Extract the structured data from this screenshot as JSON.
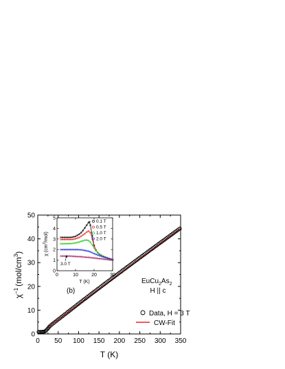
{
  "chart_data": [
    {
      "type": "scatter",
      "panel_label": "(b)",
      "xlabel": "T (K)",
      "ylabel_base": "χ",
      "ylabel_sup": "−1",
      "ylabel_units_prefix": "(mol/cm",
      "ylabel_units_sup": "3",
      "ylabel_units_suffix": ")",
      "xlim": [
        0,
        350
      ],
      "ylim": [
        0,
        50
      ],
      "xticks": [
        0,
        50,
        100,
        150,
        200,
        250,
        300,
        350
      ],
      "yticks": [
        0,
        10,
        20,
        30,
        40,
        50
      ],
      "compound_base": "EuCu",
      "compound_sub1": "2",
      "compound_mid": "As",
      "compound_sub2": "2",
      "field_direction": "H || c",
      "grid": false,
      "legend_placement": "bottom-right",
      "series": [
        {
          "name": "Data, H = 3 T",
          "style": "open-circle",
          "color": "#000000",
          "x": [
            2,
            4,
            6,
            8,
            10,
            12,
            14,
            16,
            18,
            20,
            22,
            24,
            26,
            28,
            30,
            33,
            36,
            39,
            42,
            45,
            48,
            51,
            54,
            57,
            60,
            63,
            66,
            69,
            72,
            75,
            78,
            81,
            84,
            87,
            90,
            93,
            96,
            99,
            102,
            105,
            108,
            111,
            114,
            117,
            120,
            123,
            126,
            129,
            132,
            135,
            138,
            141,
            144,
            147,
            150,
            153,
            156,
            159,
            162,
            165,
            168,
            171,
            174,
            177,
            180,
            183,
            186,
            189,
            192,
            195,
            198,
            201,
            204,
            207,
            210,
            213,
            216,
            219,
            222,
            225,
            228,
            231,
            234,
            237,
            240,
            243,
            246,
            249,
            252,
            255,
            258,
            261,
            264,
            267,
            270,
            273,
            276,
            279,
            282,
            285,
            288,
            291,
            294,
            297,
            300,
            303,
            306,
            309,
            312,
            315,
            318,
            321,
            324,
            327,
            330,
            333,
            336,
            339,
            342,
            345,
            348
          ],
          "y": [
            0.85,
            0.85,
            0.85,
            0.85,
            0.85,
            0.88,
            0.92,
            1.0,
            1.15,
            1.4,
            1.75,
            2.15,
            2.55,
            2.95,
            3.35,
            3.8,
            4.2,
            4.6,
            5.0,
            5.4,
            5.8,
            6.2,
            6.6,
            7.0,
            7.4,
            7.8,
            8.2,
            8.6,
            9.0,
            9.4,
            9.8,
            10.2,
            10.6,
            11.0,
            11.4,
            11.8,
            12.2,
            12.6,
            13.0,
            13.4,
            13.8,
            14.2,
            14.6,
            14.95,
            15.35,
            15.75,
            16.15,
            16.55,
            16.95,
            17.35,
            17.7,
            18.1,
            18.5,
            18.9,
            19.25,
            19.65,
            20.05,
            20.45,
            20.85,
            21.2,
            21.6,
            22.0,
            22.4,
            22.75,
            23.15,
            23.55,
            23.9,
            24.3,
            24.7,
            25.05,
            25.45,
            25.85,
            26.2,
            26.6,
            27.0,
            27.35,
            27.75,
            28.15,
            28.5,
            28.9,
            29.25,
            29.65,
            30.05,
            30.4,
            30.8,
            31.15,
            31.55,
            31.95,
            32.3,
            32.7,
            33.05,
            33.45,
            33.8,
            34.2,
            34.6,
            34.95,
            35.35,
            35.7,
            36.1,
            36.45,
            36.85,
            37.2,
            37.6,
            37.95,
            38.35,
            38.7,
            39.1,
            39.45,
            39.85,
            40.2,
            40.6,
            40.95,
            41.35,
            41.7,
            42.1,
            42.45,
            42.85,
            43.2,
            43.6,
            43.95,
            44.3
          ]
        },
        {
          "name": "CW-Fit",
          "style": "line",
          "color": "#ee2222",
          "x": [
            25,
            350
          ],
          "y": [
            2.85,
            44.4
          ]
        }
      ]
    },
    {
      "type": "scatter",
      "inset": true,
      "xlabel": "T (K)",
      "ylabel_base": "χ (cm",
      "ylabel_sup": "3",
      "ylabel_suffix": "/mol)",
      "xlim": [
        0,
        30
      ],
      "ylim": [
        0,
        5
      ],
      "xticks": [
        0,
        10,
        20,
        30
      ],
      "yticks": [
        0,
        1,
        2,
        3,
        4,
        5
      ],
      "annotation": "3.0 T",
      "legend_placement": "top-right",
      "series": [
        {
          "name": "0.1 T",
          "color": "#000000",
          "x": [
            2,
            3,
            4,
            5,
            6,
            7,
            8,
            9,
            10,
            11,
            12,
            13,
            14,
            15,
            16,
            17,
            17.5,
            18,
            19,
            20,
            21,
            22,
            23,
            24,
            25,
            26,
            27,
            28,
            29,
            30
          ],
          "y": [
            3.15,
            3.15,
            3.15,
            3.15,
            3.15,
            3.15,
            3.17,
            3.2,
            3.25,
            3.35,
            3.45,
            3.6,
            3.8,
            4.05,
            4.3,
            4.55,
            4.62,
            4.3,
            3.3,
            2.4,
            1.95,
            1.7,
            1.55,
            1.45,
            1.35,
            1.28,
            1.22,
            1.15,
            1.1,
            1.05
          ]
        },
        {
          "name": "0.5 T",
          "color": "#ee2222",
          "x": [
            2,
            3,
            4,
            5,
            6,
            7,
            8,
            9,
            10,
            11,
            12,
            13,
            14,
            15,
            16,
            17,
            18,
            19,
            20,
            21,
            22,
            23,
            24,
            25,
            26,
            27,
            28,
            29,
            30
          ],
          "y": [
            2.95,
            2.95,
            2.95,
            2.95,
            2.95,
            2.95,
            2.96,
            2.98,
            3.02,
            3.08,
            3.15,
            3.25,
            3.38,
            3.5,
            3.65,
            3.75,
            3.6,
            3.0,
            2.35,
            1.95,
            1.7,
            1.55,
            1.45,
            1.35,
            1.28,
            1.22,
            1.15,
            1.1,
            1.05
          ]
        },
        {
          "name": "1.0 T",
          "color": "#22cc22",
          "x": [
            2,
            3,
            4,
            5,
            6,
            7,
            8,
            9,
            10,
            11,
            12,
            13,
            14,
            15,
            16,
            17,
            18,
            19,
            20,
            21,
            22,
            23,
            24,
            25,
            26,
            27,
            28,
            29,
            30
          ],
          "y": [
            2.55,
            2.55,
            2.55,
            2.55,
            2.56,
            2.57,
            2.58,
            2.6,
            2.63,
            2.67,
            2.72,
            2.78,
            2.83,
            2.88,
            2.9,
            2.85,
            2.7,
            2.45,
            2.15,
            1.9,
            1.7,
            1.55,
            1.45,
            1.35,
            1.28,
            1.22,
            1.15,
            1.1,
            1.05
          ]
        },
        {
          "name": "2.0 T",
          "color": "#2233dd",
          "x": [
            2,
            3,
            4,
            5,
            6,
            7,
            8,
            9,
            10,
            11,
            12,
            13,
            14,
            15,
            16,
            17,
            18,
            19,
            20,
            21,
            22,
            23,
            24,
            25,
            26,
            27,
            28,
            29,
            30
          ],
          "y": [
            2.0,
            2.0,
            2.0,
            2.0,
            2.0,
            2.0,
            2.0,
            2.0,
            2.0,
            2.0,
            1.99,
            1.97,
            1.95,
            1.92,
            1.88,
            1.84,
            1.78,
            1.7,
            1.62,
            1.55,
            1.48,
            1.42,
            1.36,
            1.3,
            1.25,
            1.2,
            1.15,
            1.1,
            1.06
          ]
        },
        {
          "name": "3.0 T",
          "color": "#aa2266",
          "x": [
            2,
            3,
            4,
            5,
            6,
            7,
            8,
            9,
            10,
            11,
            12,
            13,
            14,
            15,
            16,
            17,
            18,
            19,
            20,
            21,
            22,
            23,
            24,
            25,
            26,
            27,
            28,
            29,
            30
          ],
          "y": [
            1.38,
            1.38,
            1.38,
            1.38,
            1.38,
            1.38,
            1.37,
            1.36,
            1.35,
            1.34,
            1.33,
            1.32,
            1.3,
            1.29,
            1.27,
            1.26,
            1.24,
            1.22,
            1.2,
            1.18,
            1.16,
            1.14,
            1.12,
            1.1,
            1.08,
            1.06,
            1.04,
            1.02,
            1.0
          ]
        }
      ]
    }
  ]
}
